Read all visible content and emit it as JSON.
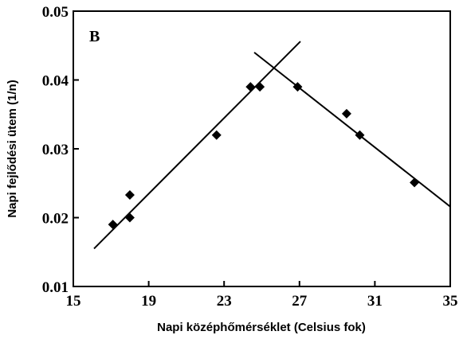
{
  "chart_data": {
    "type": "scatter",
    "annotation": "B",
    "x_label": "Napi középhőmérséklet (Celsius fok)",
    "y_label": "Napi fejlődési ütem (1/n)",
    "x": [
      17.1,
      18.0,
      18.0,
      22.6,
      24.4,
      24.9,
      26.9,
      29.5,
      30.2,
      33.1
    ],
    "values": [
      0.019,
      0.0233,
      0.02,
      0.032,
      0.039,
      0.039,
      0.039,
      0.0351,
      0.032,
      0.0251
    ],
    "color": "#000000",
    "lines": [
      {
        "x": [
          16.1,
          27.05
        ],
        "values": [
          0.0155,
          0.0456
        ]
      },
      {
        "x": [
          24.6,
          35
        ],
        "values": [
          0.044,
          0.0216
        ]
      }
    ],
    "xlim": [
      15,
      35
    ],
    "xticks": [
      15,
      19,
      23,
      27,
      31,
      35
    ],
    "ylim": [
      0.01,
      0.05
    ],
    "yticks": [
      0.01,
      0.02,
      0.03,
      0.04,
      0.05
    ]
  }
}
